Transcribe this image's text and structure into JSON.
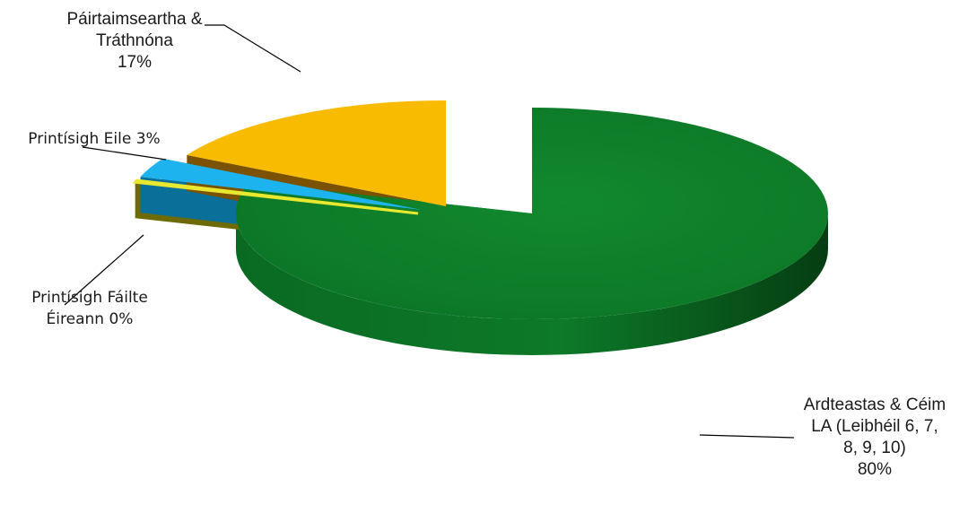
{
  "chart_data": {
    "type": "pie",
    "title": "",
    "style": "3d-exploded",
    "slices": [
      {
        "name": "Ardteastas & Céim LA (Leibhéil 6, 7, 8, 9, 10)",
        "value": 80,
        "label_lines": [
          "Ardteastas & Céim",
          "LA (Leibhéil 6, 7,",
          "8, 9, 10)",
          "80%"
        ],
        "color": "#0e7f2a",
        "side_color": "#0a5a1c"
      },
      {
        "name": "Printísigh Fáilte Éireann",
        "value": 0.3,
        "label_lines": [
          "Printísigh Fáilte",
          "Éireann 0%"
        ],
        "color": "#e8e830",
        "side_color": "#6e6a05"
      },
      {
        "name": "Printísigh Eile",
        "value": 3,
        "label_lines": [
          "Printísigh Eile 3%"
        ],
        "color": "#1db3ef",
        "side_color": "#0a6f99"
      },
      {
        "name": "Páirtaimseartha & Tráthnóna",
        "value": 17,
        "label_lines": [
          "Páirtaimseartha &",
          "Tráthnóna",
          "17%"
        ],
        "color": "#f9bb00",
        "side_color": "#7a5200"
      }
    ]
  }
}
